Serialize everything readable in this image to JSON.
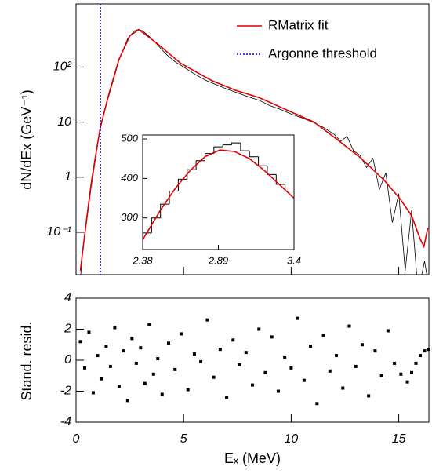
{
  "chart_data": [
    {
      "type": "line",
      "yscale": "log",
      "ylabel": "dN/dEx (GeV⁻¹)",
      "legend": "upper right",
      "xlim": [
        0,
        16.4
      ],
      "xticks": [
        0,
        5,
        10,
        15
      ],
      "ylim": [
        0.017,
        1400
      ],
      "yticks": [
        {
          "value": 0.1,
          "label": "10⁻¹"
        },
        1,
        10,
        {
          "value": 100,
          "label": "10²"
        }
      ],
      "series": [
        {
          "color": "#000000",
          "x": [
            0.1,
            0.3,
            0.5,
            0.7,
            0.9,
            1.1,
            1.3,
            1.6,
            2.0,
            2.4,
            2.7,
            2.9,
            3.1,
            3.4,
            3.8,
            4.2,
            4.6,
            5.0,
            5.5,
            6.0,
            6.5,
            7.0,
            7.5,
            8.0,
            8.5,
            9.0,
            9.5,
            10.0,
            10.5,
            11.0,
            11.5,
            12.0,
            12.3,
            12.6,
            12.9,
            13.2,
            13.5,
            13.8,
            14.1,
            14.4,
            14.7,
            15.0,
            15.3,
            15.6,
            15.9,
            16.2,
            16.4
          ],
          "values": [
            0.005,
            0.04,
            0.2,
            0.8,
            2.5,
            7,
            15,
            38,
            135,
            330,
            450,
            480,
            455,
            360,
            250,
            170,
            125,
            100,
            75,
            58,
            48,
            40,
            34,
            29,
            25,
            20,
            17,
            14,
            12,
            10,
            8,
            6,
            4.5,
            5.5,
            3,
            2.5,
            1.5,
            2.2,
            0.6,
            1.2,
            0.15,
            0.5,
            0.02,
            0.25,
            0.008,
            0.03,
            0.01
          ]
        },
        {
          "name": "RMatrix fit",
          "color": "#e00000",
          "x": [
            0.2,
            0.4,
            0.7,
            1.0,
            1.13,
            1.5,
            2.0,
            2.5,
            2.92,
            3.76,
            4.85,
            6.3,
            7.4,
            8.5,
            9.6,
            11.06,
            12.15,
            13.25,
            14.3,
            15.07,
            15.6,
            16.0,
            16.17,
            16.35
          ],
          "values": [
            0.02,
            0.09,
            0.7,
            4,
            8,
            30,
            140,
            370,
            480,
            270,
            118,
            57,
            38,
            28,
            18,
            10,
            4.8,
            2.2,
            0.9,
            0.4,
            0.2,
            0.075,
            0.055,
            0.12
          ]
        }
      ],
      "vlines": [
        {
          "name": "Argonne threshold",
          "x": 1.13,
          "color": "#0000cc"
        }
      ]
    },
    {
      "type": "histogram",
      "xlim": [
        2.38,
        3.4
      ],
      "xticks": [
        2.38,
        2.89,
        3.4
      ],
      "ylim": [
        220,
        510
      ],
      "yticks": [
        300,
        400,
        500
      ],
      "bins": [
        2.38,
        2.44,
        2.5,
        2.56,
        2.62,
        2.68,
        2.74,
        2.8,
        2.86,
        2.92,
        2.98,
        3.04,
        3.1,
        3.16,
        3.22,
        3.28,
        3.34,
        3.4
      ],
      "counts": [
        262,
        300,
        335,
        368,
        398,
        422,
        445,
        463,
        480,
        485,
        490,
        470,
        455,
        432,
        410,
        385,
        368
      ],
      "color": "#000000",
      "curve": {
        "color": "#e00000",
        "x": [
          2.38,
          2.5,
          2.6,
          2.7,
          2.8,
          2.9,
          3.0,
          3.1,
          3.2,
          3.3,
          3.4
        ],
        "values": [
          245,
          320,
          375,
          420,
          455,
          472,
          468,
          450,
          420,
          385,
          350
        ]
      }
    },
    {
      "type": "scatter",
      "xlabel": "Eₓ (MeV)",
      "ylabel": "Stand. resid.",
      "xlim": [
        0,
        16.4
      ],
      "xticks": [
        0,
        5,
        10,
        15
      ],
      "ylim": [
        -4,
        4
      ],
      "yticks": [
        -4,
        -2,
        0,
        2,
        4
      ],
      "color": "#000000",
      "x": [
        0.2,
        0.4,
        0.6,
        0.8,
        1.0,
        1.2,
        1.4,
        1.6,
        1.8,
        2.0,
        2.2,
        2.4,
        2.6,
        2.8,
        3.0,
        3.2,
        3.4,
        3.6,
        3.8,
        4.0,
        4.3,
        4.6,
        4.9,
        5.2,
        5.5,
        5.8,
        6.1,
        6.4,
        6.7,
        7.0,
        7.3,
        7.6,
        7.9,
        8.2,
        8.5,
        8.8,
        9.1,
        9.4,
        9.7,
        10.0,
        10.3,
        10.6,
        10.9,
        11.2,
        11.5,
        11.8,
        12.1,
        12.4,
        12.7,
        13.0,
        13.3,
        13.6,
        13.9,
        14.2,
        14.5,
        14.8,
        15.1,
        15.4,
        15.6,
        15.8,
        16.0,
        16.2,
        16.4
      ],
      "values": [
        1.2,
        -0.5,
        1.8,
        -2.1,
        0.3,
        -1.2,
        0.9,
        -0.4,
        2.1,
        -1.7,
        0.6,
        -2.6,
        1.4,
        -0.2,
        0.8,
        -1.5,
        2.3,
        -0.9,
        0.1,
        -2.2,
        1.1,
        -0.6,
        1.7,
        -1.9,
        0.4,
        -0.1,
        2.6,
        -1.1,
        0.7,
        -2.4,
        1.3,
        -0.3,
        0.5,
        -1.6,
        2.0,
        -0.8,
        1.5,
        -2.0,
        0.2,
        -0.5,
        2.7,
        -1.3,
        0.9,
        -2.8,
        1.6,
        -0.7,
        0.3,
        -1.8,
        2.2,
        -0.4,
        1.0,
        -2.3,
        0.6,
        -1.0,
        1.9,
        -0.2,
        -0.9,
        -1.4,
        -0.8,
        -0.2,
        0.3,
        0.6,
        0.7
      ]
    }
  ]
}
